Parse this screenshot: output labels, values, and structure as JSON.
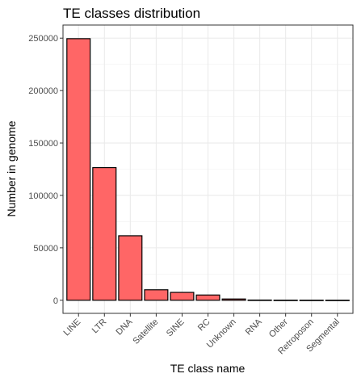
{
  "chart_data": {
    "type": "bar",
    "title": "TE classes distribution",
    "xlabel": "TE class name",
    "ylabel": "Number in genome",
    "categories": [
      "LINE",
      "LTR",
      "DNA",
      "Satellite",
      "SINE",
      "RC",
      "Unknown",
      "RNA",
      "Other",
      "Retroposon",
      "Segmental"
    ],
    "values": [
      249500,
      126500,
      61500,
      10000,
      7500,
      5000,
      1200,
      200,
      100,
      80,
      50
    ],
    "yticks": [
      "0",
      "50000",
      "100000",
      "150000",
      "200000",
      "250000"
    ],
    "ylim": [
      -12500,
      262500
    ],
    "grid": true,
    "legend": "none",
    "bar_color": "#ff6666",
    "bar_edge_color": "#000000"
  }
}
